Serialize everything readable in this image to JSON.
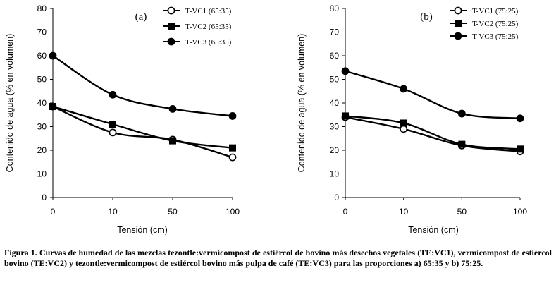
{
  "chart_data": [
    {
      "type": "line",
      "panel_label": "(a)",
      "categories": [
        "0",
        "10",
        "50",
        "100"
      ],
      "xlabel": "Tensión (cm)",
      "ylabel": "Contenido de agua (% en volumen)",
      "ylim": [
        0,
        80
      ],
      "yticks": [
        "0",
        "10",
        "20",
        "30",
        "40",
        "50",
        "60",
        "70",
        "80"
      ],
      "legend_placement": "top-right",
      "grid": false,
      "series": [
        {
          "name": "T-VC1 (65:35)",
          "marker": "open-circle",
          "values": [
            38.5,
            27.5,
            24.5,
            17
          ]
        },
        {
          "name": "T-VC2 (65:35)",
          "marker": "filled-square",
          "values": [
            38.5,
            31,
            24,
            21
          ]
        },
        {
          "name": "T-VC3 (65:35)",
          "marker": "filled-circle",
          "values": [
            60,
            43.5,
            37.5,
            34.5
          ]
        }
      ]
    },
    {
      "type": "line",
      "panel_label": "(b)",
      "categories": [
        "0",
        "10",
        "50",
        "100"
      ],
      "xlabel": "Tensión (cm)",
      "ylabel": "Contenido de agua (% en volumen)",
      "ylim": [
        0,
        80
      ],
      "yticks": [
        "0",
        "10",
        "20",
        "30",
        "40",
        "50",
        "60",
        "70",
        "80"
      ],
      "legend_placement": "top-right",
      "grid": false,
      "series": [
        {
          "name": "T-VC1 (75:25)",
          "marker": "open-circle",
          "values": [
            34,
            29,
            22,
            19.5
          ]
        },
        {
          "name": "T-VC2 (75:25)",
          "marker": "filled-square",
          "values": [
            34.5,
            31.5,
            22.5,
            20.5
          ]
        },
        {
          "name": "T-VC3 (75:25)",
          "marker": "filled-circle",
          "values": [
            53.5,
            46,
            35.5,
            33.5
          ]
        }
      ]
    }
  ],
  "caption": "Figura 1. Curvas de humedad de las mezclas tezontle:vermicompost de estiércol de bovino más desechos vegetales (TE:VC1), vermicompost de estiércol bovino (TE:VC2) y tezontle:vermicompost de estiércol bovino más pulpa de café (TE:VC3) para las proporciones a) 65:35 y b) 75:25."
}
